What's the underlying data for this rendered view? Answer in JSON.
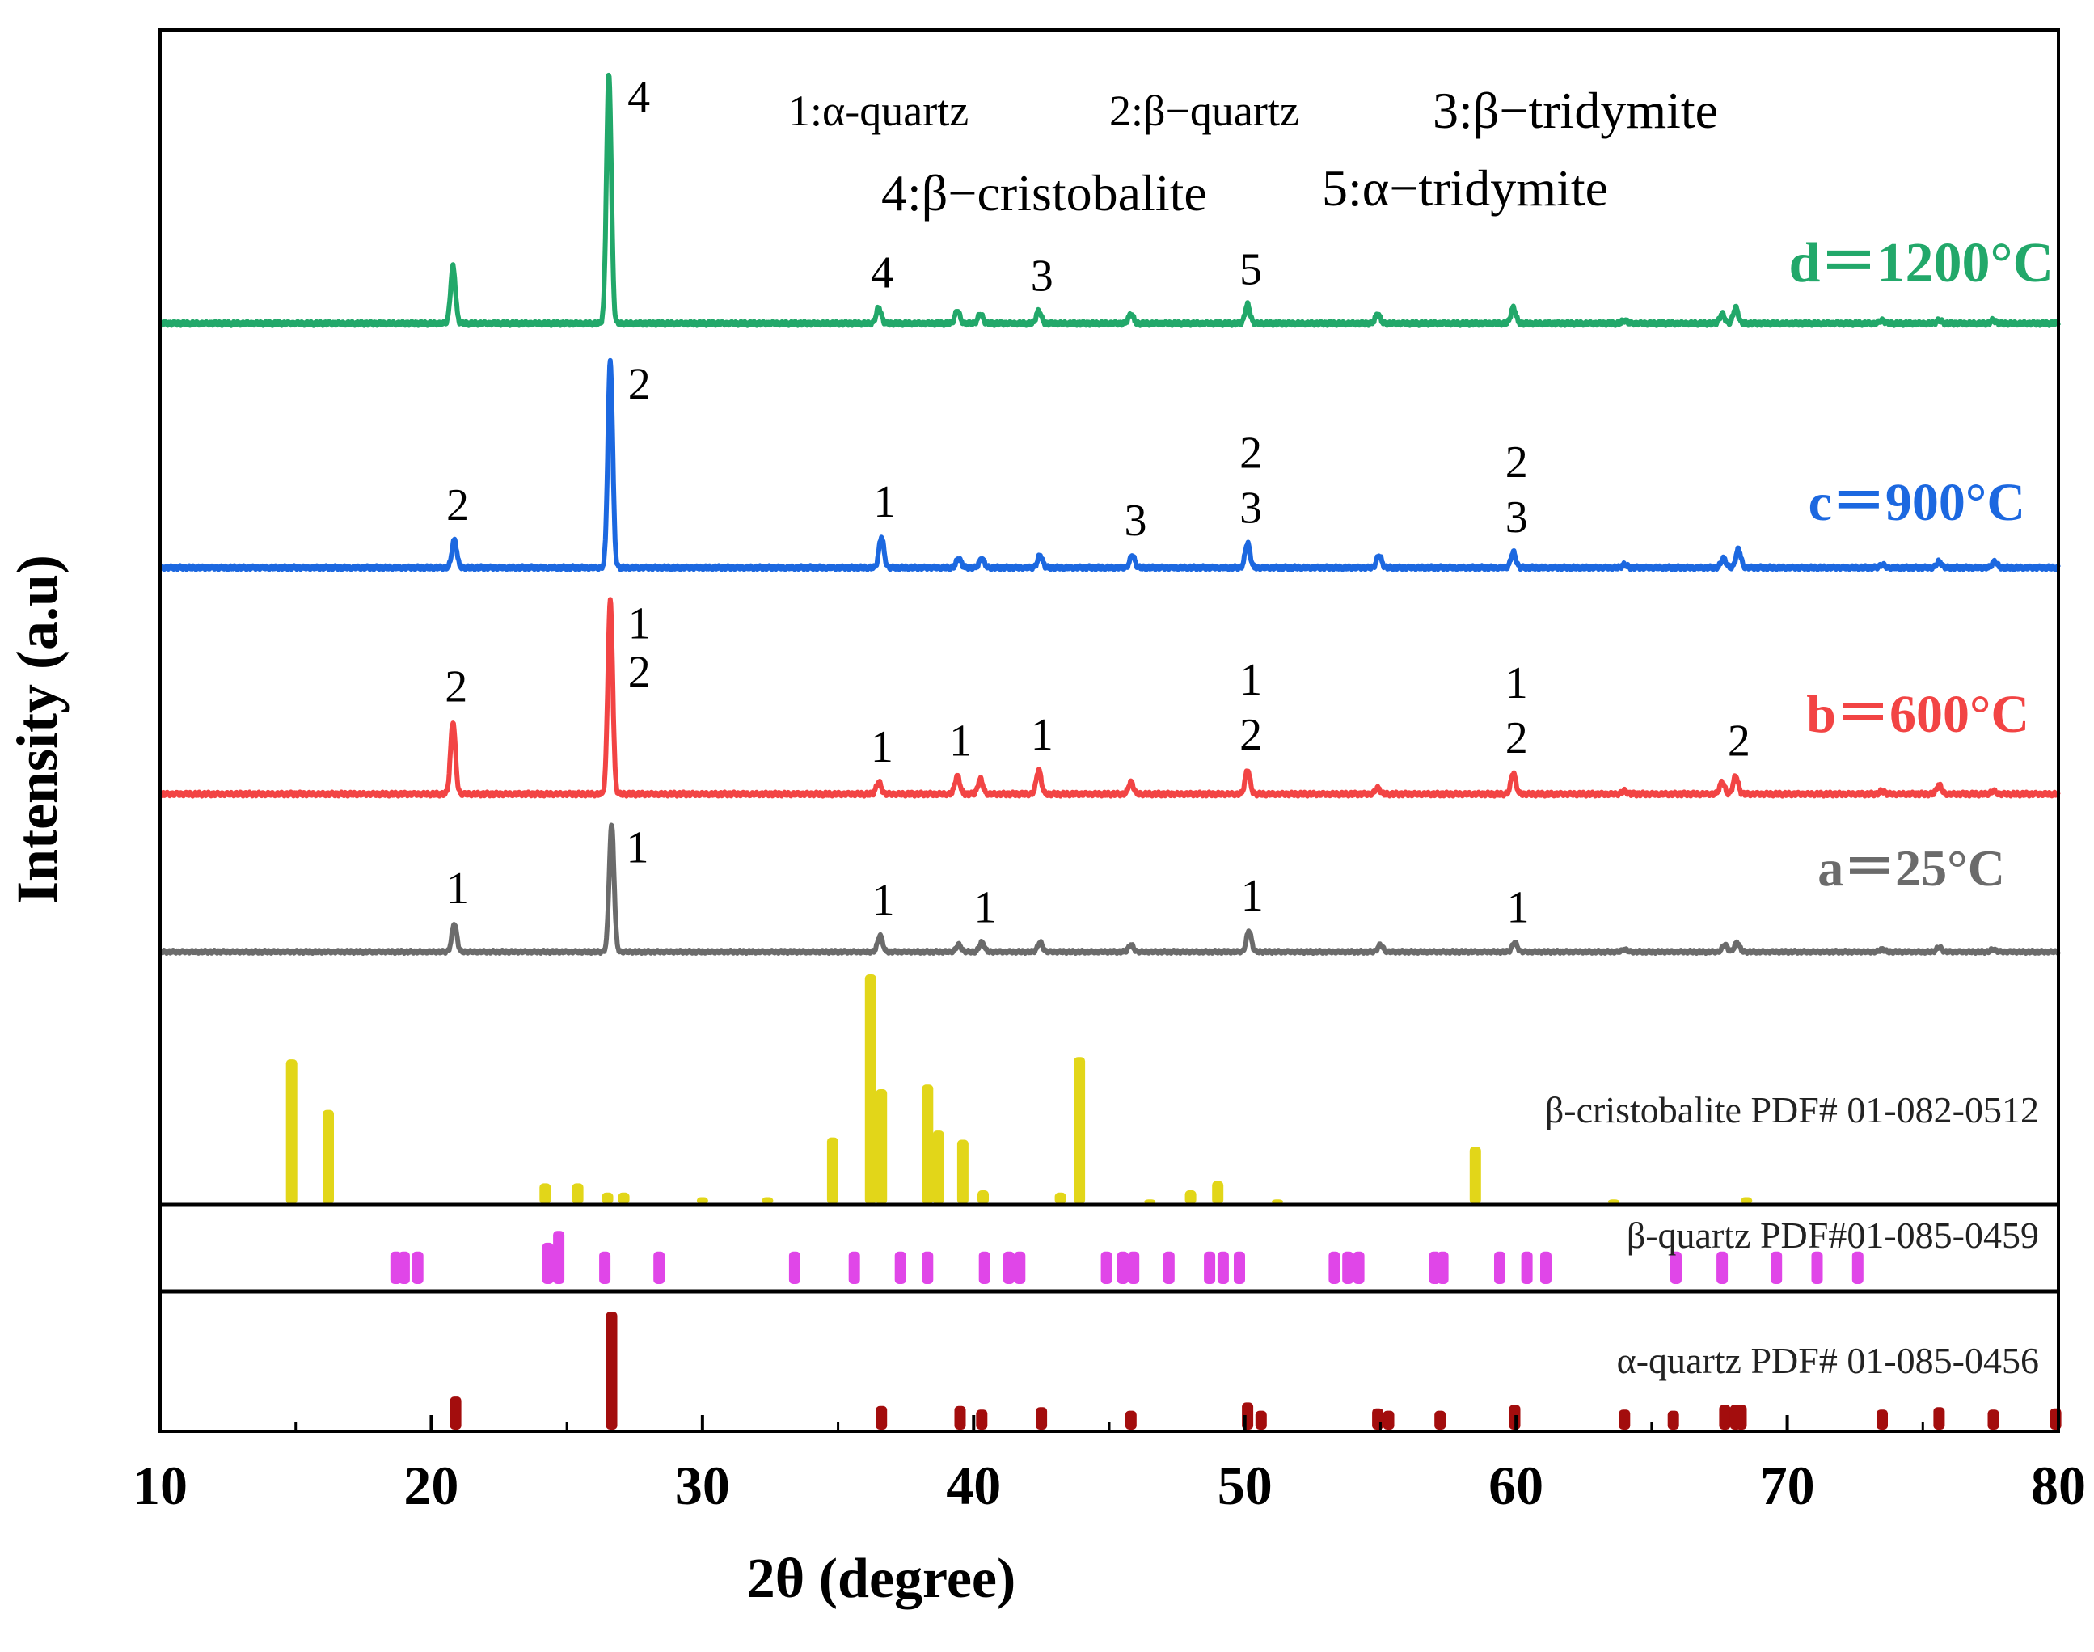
{
  "chart_data": {
    "type": "line",
    "xlabel": "2θ (degree)",
    "ylabel": "Intensity (a.u)",
    "xlim": [
      10,
      80
    ],
    "xticks": [
      "10",
      "20",
      "30",
      "40",
      "50",
      "60",
      "70",
      "80"
    ],
    "legend": {
      "l1": "1:α-quartz",
      "l2": "2:β−quartz",
      "l3": "3:β−tridymite",
      "l4": "4:β−cristobalite",
      "l5": "5:α−tridymite"
    },
    "series": [
      {
        "name": "a=25°C",
        "label": "a＝25°C",
        "color": "#6b6b6b",
        "peaks": [
          [
            20.85,
            0.12
          ],
          [
            26.65,
            0.54
          ],
          [
            36.55,
            0.07
          ],
          [
            39.45,
            0.03
          ],
          [
            40.3,
            0.04
          ],
          [
            42.45,
            0.04
          ],
          [
            45.8,
            0.03
          ],
          [
            50.15,
            0.09
          ],
          [
            55.0,
            0.03
          ],
          [
            59.95,
            0.04
          ],
          [
            64.0,
            0.01
          ],
          [
            67.7,
            0.03
          ],
          [
            68.15,
            0.04
          ],
          [
            73.5,
            0.01
          ],
          [
            75.6,
            0.02
          ],
          [
            77.6,
            0.01
          ]
        ],
        "annotations": [
          [
            20.85,
            "1"
          ],
          [
            26.65,
            "1"
          ],
          [
            36.55,
            "1"
          ],
          [
            40.3,
            "1"
          ],
          [
            50.15,
            "1"
          ],
          [
            59.95,
            "1"
          ]
        ]
      },
      {
        "name": "b=600°C",
        "label": "b＝600°C",
        "color": "#f24444",
        "peaks": [
          [
            20.8,
            0.24
          ],
          [
            26.6,
            0.64
          ],
          [
            36.5,
            0.04
          ],
          [
            39.4,
            0.06
          ],
          [
            40.25,
            0.05
          ],
          [
            42.4,
            0.08
          ],
          [
            45.8,
            0.04
          ],
          [
            50.1,
            0.08
          ],
          [
            54.9,
            0.02
          ],
          [
            59.9,
            0.07
          ],
          [
            64.0,
            0.01
          ],
          [
            67.6,
            0.04
          ],
          [
            68.1,
            0.06
          ],
          [
            73.5,
            0.01
          ],
          [
            75.6,
            0.03
          ],
          [
            77.6,
            0.01
          ]
        ],
        "annotations": [
          [
            20.8,
            "2"
          ],
          [
            26.6,
            "1"
          ],
          [
            26.6,
            "2"
          ],
          [
            36.5,
            "1"
          ],
          [
            39.4,
            "1"
          ],
          [
            42.4,
            "1"
          ],
          [
            50.1,
            "2"
          ],
          [
            50.1,
            "1"
          ],
          [
            59.9,
            "2"
          ],
          [
            59.9,
            "1"
          ],
          [
            68.1,
            "2"
          ]
        ]
      },
      {
        "name": "c=900°C",
        "label": "c＝900°C",
        "color": "#1c68e0",
        "peaks": [
          [
            20.85,
            0.09
          ],
          [
            26.6,
            0.67
          ],
          [
            36.6,
            0.1
          ],
          [
            39.45,
            0.03
          ],
          [
            40.3,
            0.03
          ],
          [
            42.45,
            0.04
          ],
          [
            45.85,
            0.04
          ],
          [
            50.1,
            0.08
          ],
          [
            54.95,
            0.04
          ],
          [
            59.9,
            0.05
          ],
          [
            64.0,
            0.01
          ],
          [
            67.65,
            0.03
          ],
          [
            68.2,
            0.06
          ],
          [
            73.5,
            0.01
          ],
          [
            75.6,
            0.02
          ],
          [
            77.65,
            0.02
          ]
        ],
        "annotations": [
          [
            20.85,
            "2"
          ],
          [
            26.6,
            "2"
          ],
          [
            36.6,
            "1"
          ],
          [
            45.85,
            "3"
          ],
          [
            50.1,
            "3"
          ],
          [
            50.1,
            "2"
          ],
          [
            59.9,
            "3"
          ],
          [
            59.9,
            "2"
          ]
        ]
      },
      {
        "name": "d=1200°C",
        "label": "d＝1200°C",
        "color": "#22a86a",
        "peaks": [
          [
            20.8,
            0.18
          ],
          [
            26.55,
            0.79
          ],
          [
            36.5,
            0.05
          ],
          [
            39.4,
            0.04
          ],
          [
            40.25,
            0.03
          ],
          [
            42.4,
            0.04
          ],
          [
            45.8,
            0.03
          ],
          [
            50.1,
            0.06
          ],
          [
            54.9,
            0.03
          ],
          [
            59.9,
            0.05
          ],
          [
            64.0,
            0.01
          ],
          [
            67.6,
            0.03
          ],
          [
            68.1,
            0.05
          ],
          [
            73.5,
            0.01
          ],
          [
            75.6,
            0.01
          ],
          [
            77.6,
            0.01
          ]
        ],
        "annotations": [
          [
            26.55,
            "4"
          ],
          [
            36.5,
            "4"
          ],
          [
            42.4,
            "3"
          ],
          [
            50.1,
            "5"
          ]
        ]
      }
    ],
    "references": [
      {
        "name": "β-cristobalite PDF# 01-082-0512",
        "color": "#e2d619",
        "sticks": [
          [
            14.85,
            0.63
          ],
          [
            16.2,
            0.41
          ],
          [
            24.2,
            0.09
          ],
          [
            25.4,
            0.09
          ],
          [
            26.5,
            0.05
          ],
          [
            27.1,
            0.05
          ],
          [
            30.0,
            0.03
          ],
          [
            32.4,
            0.03
          ],
          [
            34.8,
            0.29
          ],
          [
            36.2,
            1.0
          ],
          [
            36.6,
            0.5
          ],
          [
            38.3,
            0.52
          ],
          [
            38.7,
            0.32
          ],
          [
            39.6,
            0.28
          ],
          [
            40.35,
            0.06
          ],
          [
            43.2,
            0.05
          ],
          [
            43.9,
            0.64
          ],
          [
            46.5,
            0.02
          ],
          [
            48.0,
            0.06
          ],
          [
            49.0,
            0.1
          ],
          [
            51.2,
            0.02
          ],
          [
            58.5,
            0.25
          ],
          [
            63.6,
            0.02
          ],
          [
            68.5,
            0.03
          ]
        ]
      },
      {
        "name": "β-quartz PDF#01-085-0459",
        "color": "#e046e8",
        "sticks": [
          [
            18.7,
            0.55
          ],
          [
            19.0,
            0.55
          ],
          [
            19.5,
            0.55
          ],
          [
            24.3,
            0.7
          ],
          [
            24.7,
            0.9
          ],
          [
            26.4,
            0.55
          ],
          [
            28.4,
            0.55
          ],
          [
            33.4,
            0.55
          ],
          [
            35.6,
            0.55
          ],
          [
            37.3,
            0.55
          ],
          [
            38.3,
            0.55
          ],
          [
            40.4,
            0.55
          ],
          [
            41.3,
            0.55
          ],
          [
            41.7,
            0.55
          ],
          [
            44.9,
            0.55
          ],
          [
            45.5,
            0.55
          ],
          [
            45.9,
            0.55
          ],
          [
            47.2,
            0.55
          ],
          [
            48.7,
            0.55
          ],
          [
            49.2,
            0.55
          ],
          [
            49.8,
            0.55
          ],
          [
            53.3,
            0.55
          ],
          [
            53.8,
            0.55
          ],
          [
            54.2,
            0.55
          ],
          [
            57.0,
            0.55
          ],
          [
            57.3,
            0.55
          ],
          [
            59.4,
            0.55
          ],
          [
            60.4,
            0.55
          ],
          [
            61.1,
            0.55
          ],
          [
            65.9,
            0.55
          ],
          [
            67.6,
            0.55
          ],
          [
            69.6,
            0.55
          ],
          [
            71.1,
            0.55
          ],
          [
            72.6,
            0.55
          ]
        ]
      },
      {
        "name": "α-quartz PDF# 01-085-0456",
        "color": "#a30d0d",
        "sticks": [
          [
            20.9,
            0.28
          ],
          [
            26.65,
            1.0
          ],
          [
            36.6,
            0.2
          ],
          [
            39.5,
            0.2
          ],
          [
            40.3,
            0.17
          ],
          [
            42.5,
            0.19
          ],
          [
            45.8,
            0.16
          ],
          [
            50.1,
            0.23
          ],
          [
            50.6,
            0.16
          ],
          [
            54.9,
            0.18
          ],
          [
            55.3,
            0.16
          ],
          [
            57.2,
            0.16
          ],
          [
            59.95,
            0.21
          ],
          [
            64.0,
            0.17
          ],
          [
            65.8,
            0.16
          ],
          [
            67.7,
            0.21
          ],
          [
            68.1,
            0.21
          ],
          [
            68.3,
            0.21
          ],
          [
            73.5,
            0.17
          ],
          [
            75.6,
            0.19
          ],
          [
            77.6,
            0.17
          ],
          [
            79.9,
            0.18
          ]
        ]
      }
    ]
  }
}
